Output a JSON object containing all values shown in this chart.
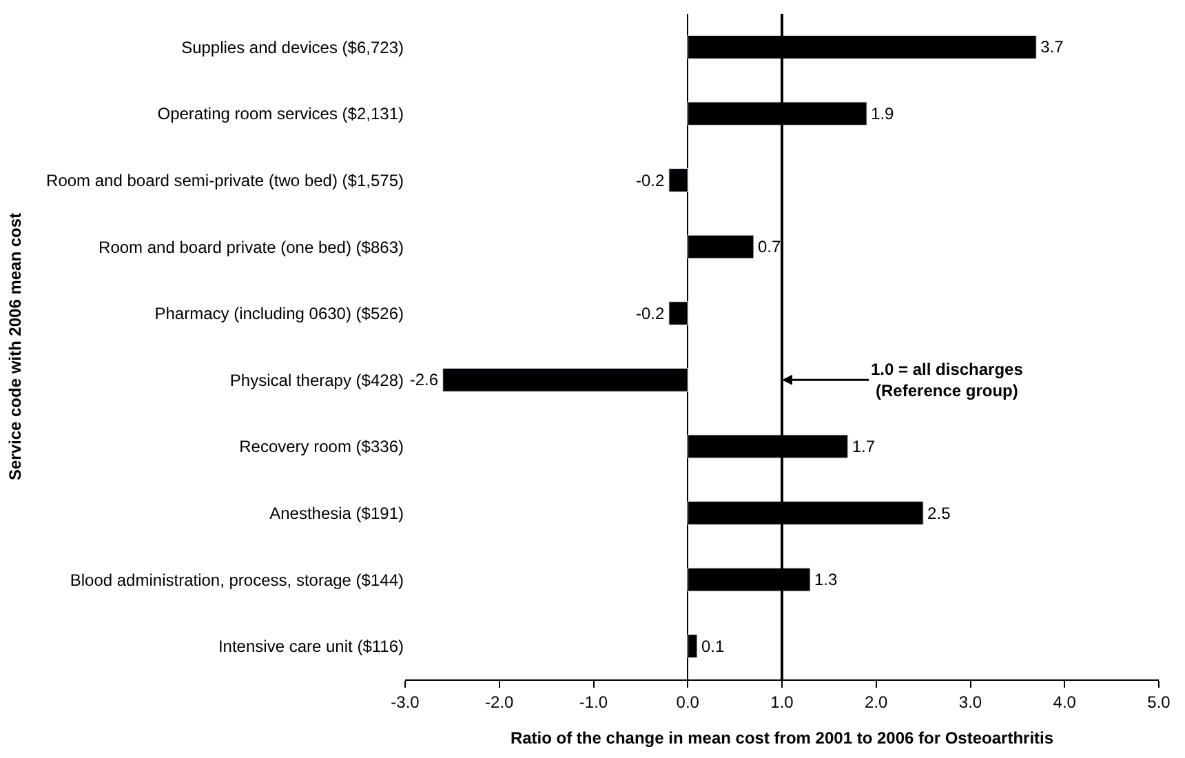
{
  "chart_data": {
    "type": "bar",
    "orientation": "horizontal",
    "categories": [
      "Supplies and devices ($6,723)",
      "Operating room services ($2,131)",
      "Room and board semi-private (two bed) ($1,575)",
      "Room and board private (one bed) ($863)",
      "Pharmacy (including 0630) ($526)",
      "Physical therapy ($428)",
      "Recovery room ($336)",
      "Anesthesia ($191)",
      "Blood administration, process, storage ($144)",
      "Intensive care unit ($116)"
    ],
    "values": [
      3.7,
      1.9,
      -0.2,
      0.7,
      -0.2,
      -2.6,
      1.7,
      2.5,
      1.3,
      0.1
    ],
    "color": "#000000",
    "xlabel": "Ratio of the change in mean cost from 2001 to 2006 for Osteoarthritis",
    "ylabel": "Service code with 2006 mean cost",
    "xlim": [
      -3,
      5
    ],
    "xticks": [
      {
        "value": -3,
        "label": "-3.0"
      },
      {
        "value": -2,
        "label": "-2.0"
      },
      {
        "value": -1,
        "label": "-1.0"
      },
      {
        "value": 0,
        "label": "0.0"
      },
      {
        "value": 1,
        "label": "1.0"
      },
      {
        "value": 2,
        "label": "2.0"
      },
      {
        "value": 3,
        "label": "3.0"
      },
      {
        "value": 4,
        "label": "4.0"
      },
      {
        "value": 5,
        "label": "5.0"
      }
    ],
    "ref_lines": [
      {
        "axis": "x",
        "value": 1,
        "label": "1.0 = all discharges\n(Reference group)",
        "color": "#000000"
      }
    ],
    "data_labels": true,
    "legend": false
  }
}
